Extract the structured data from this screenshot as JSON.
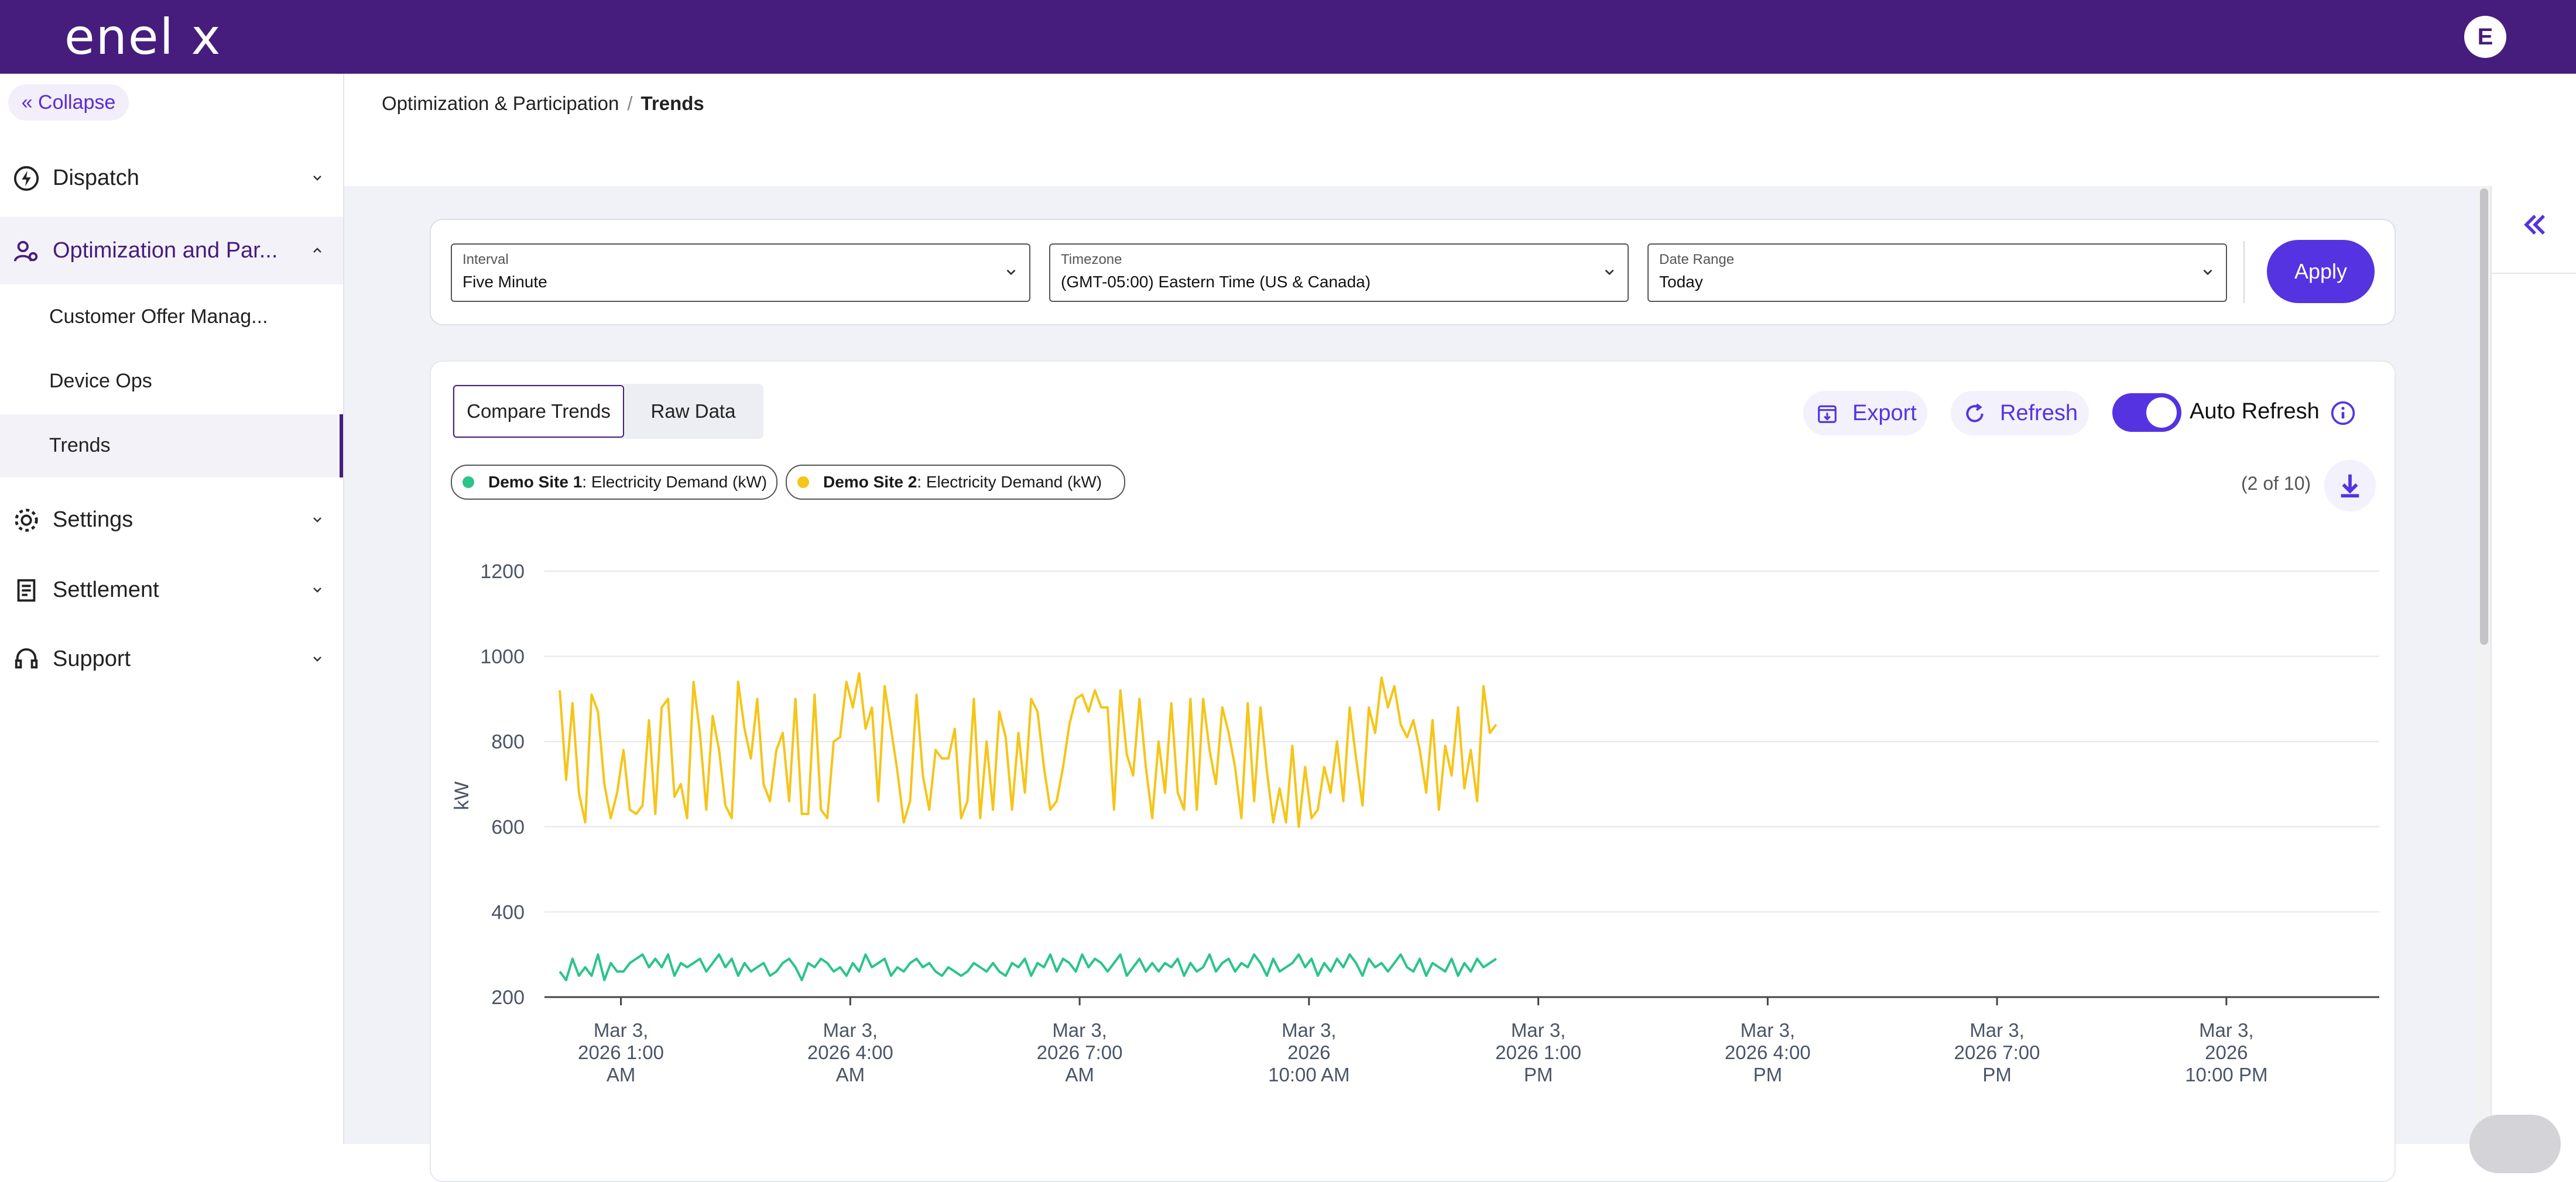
{
  "header": {
    "logo": "enel x",
    "avatar_initial": "E"
  },
  "sidebar": {
    "collapse_label": "« Collapse",
    "items": [
      {
        "label": "Dispatch",
        "icon": "lightning-icon"
      },
      {
        "label": "Optimization and Par...",
        "icon": "user-gear-icon",
        "expanded": true
      },
      {
        "label": "Settings",
        "icon": "gear-icon"
      },
      {
        "label": "Settlement",
        "icon": "document-icon"
      },
      {
        "label": "Support",
        "icon": "headset-icon"
      }
    ],
    "sub_items": [
      {
        "label": "Customer Offer Manag..."
      },
      {
        "label": "Device Ops"
      },
      {
        "label": "Trends",
        "current": true
      }
    ]
  },
  "breadcrumb": {
    "parent": "Optimization & Participation",
    "separator": "/",
    "current": "Trends"
  },
  "filters": {
    "interval": {
      "caption": "Interval",
      "value": "Five Minute"
    },
    "timezone": {
      "caption": "Timezone",
      "value": "(GMT-05:00) Eastern Time (US & Canada)"
    },
    "date_range": {
      "caption": "Date Range",
      "value": "Today"
    },
    "apply_label": "Apply"
  },
  "toolbar": {
    "tabs": [
      "Compare Trends",
      "Raw Data"
    ],
    "export_label": "Export",
    "refresh_label": "Refresh",
    "auto_refresh_label": "Auto Refresh",
    "auto_refresh_on": true
  },
  "legend": {
    "chips": [
      {
        "site": "Demo Site 1",
        "metric": ": Electricity Demand (kW)",
        "color": "#2bc48a"
      },
      {
        "site": "Demo Site 2",
        "metric": ": Electricity Demand (kW)",
        "color": "#f5c518"
      }
    ],
    "count": "(2 of 10)"
  },
  "colors": {
    "brand": "#461D7C",
    "accent": "#5533e0",
    "series1": "#2bc48a",
    "series2": "#f5c518"
  },
  "chart_data": {
    "type": "line",
    "ylabel": "kW",
    "ylim": [
      200,
      1200
    ],
    "yticks": [
      200,
      400,
      600,
      800,
      1000,
      1200
    ],
    "xlim_hours": [
      0,
      24
    ],
    "xticks": [
      {
        "h": 1,
        "label": [
          "Mar 3,",
          "2026 1:00",
          "AM"
        ]
      },
      {
        "h": 4,
        "label": [
          "Mar 3,",
          "2026 4:00",
          "AM"
        ]
      },
      {
        "h": 7,
        "label": [
          "Mar 3,",
          "2026 7:00",
          "AM"
        ]
      },
      {
        "h": 10,
        "label": [
          "Mar 3,",
          "2026",
          "10:00 AM"
        ]
      },
      {
        "h": 13,
        "label": [
          "Mar 3,",
          "2026 1:00",
          "PM"
        ]
      },
      {
        "h": 16,
        "label": [
          "Mar 3,",
          "2026 4:00",
          "PM"
        ]
      },
      {
        "h": 19,
        "label": [
          "Mar 3,",
          "2026 7:00",
          "PM"
        ]
      },
      {
        "h": 22,
        "label": [
          "Mar 3,",
          "2026",
          "10:00 PM"
        ]
      }
    ],
    "series": [
      {
        "name": "Demo Site 2: Electricity Demand (kW)",
        "color": "#f5c518",
        "x_start": 0.2,
        "x_step": 0.08333,
        "values": [
          920,
          710,
          890,
          680,
          610,
          910,
          870,
          700,
          620,
          680,
          780,
          640,
          630,
          650,
          850,
          630,
          880,
          900,
          670,
          700,
          620,
          940,
          820,
          640,
          860,
          780,
          650,
          620,
          940,
          830,
          760,
          900,
          700,
          660,
          780,
          820,
          660,
          900,
          630,
          630,
          910,
          640,
          620,
          800,
          810,
          940,
          880,
          960,
          830,
          880,
          660,
          930,
          830,
          730,
          610,
          660,
          910,
          720,
          640,
          780,
          760,
          760,
          830,
          620,
          660,
          900,
          620,
          800,
          640,
          870,
          810,
          640,
          820,
          680,
          900,
          870,
          740,
          640,
          660,
          740,
          840,
          900,
          910,
          870,
          920,
          880,
          880,
          640,
          920,
          770,
          720,
          900,
          740,
          620,
          800,
          680,
          890,
          680,
          640,
          900,
          640,
          900,
          780,
          700,
          880,
          820,
          740,
          620,
          890,
          660,
          880,
          730,
          610,
          690,
          610,
          790,
          600,
          740,
          620,
          640,
          740,
          680,
          800,
          660,
          880,
          760,
          650,
          880,
          820,
          950,
          880,
          930,
          840,
          810,
          850,
          780,
          680,
          850,
          640,
          790,
          720,
          880,
          690,
          780,
          660,
          930,
          820,
          840
        ]
      },
      {
        "name": "Demo Site 1: Electricity Demand (kW)",
        "color": "#2bc48a",
        "x_start": 0.2,
        "x_step": 0.08333,
        "values": [
          260,
          240,
          290,
          250,
          270,
          250,
          300,
          240,
          280,
          260,
          260,
          280,
          290,
          300,
          270,
          290,
          270,
          300,
          250,
          280,
          270,
          280,
          290,
          260,
          280,
          300,
          270,
          290,
          250,
          280,
          260,
          270,
          280,
          250,
          260,
          280,
          290,
          270,
          240,
          280,
          270,
          290,
          280,
          260,
          270,
          250,
          280,
          260,
          300,
          270,
          280,
          290,
          250,
          270,
          260,
          280,
          290,
          270,
          280,
          260,
          250,
          270,
          260,
          250,
          260,
          280,
          270,
          260,
          280,
          260,
          250,
          280,
          270,
          290,
          250,
          280,
          270,
          300,
          260,
          290,
          280,
          260,
          300,
          270,
          290,
          280,
          260,
          280,
          300,
          250,
          270,
          290,
          260,
          280,
          260,
          280,
          270,
          290,
          250,
          280,
          260,
          270,
          300,
          260,
          280,
          290,
          260,
          280,
          270,
          300,
          280,
          250,
          290,
          260,
          270,
          280,
          300,
          270,
          290,
          250,
          280,
          260,
          290,
          270,
          300,
          280,
          250,
          290,
          270,
          280,
          260,
          280,
          300,
          270,
          260,
          290,
          250,
          280,
          270,
          260,
          290,
          250,
          280,
          260,
          290,
          270,
          280,
          290
        ]
      }
    ]
  }
}
